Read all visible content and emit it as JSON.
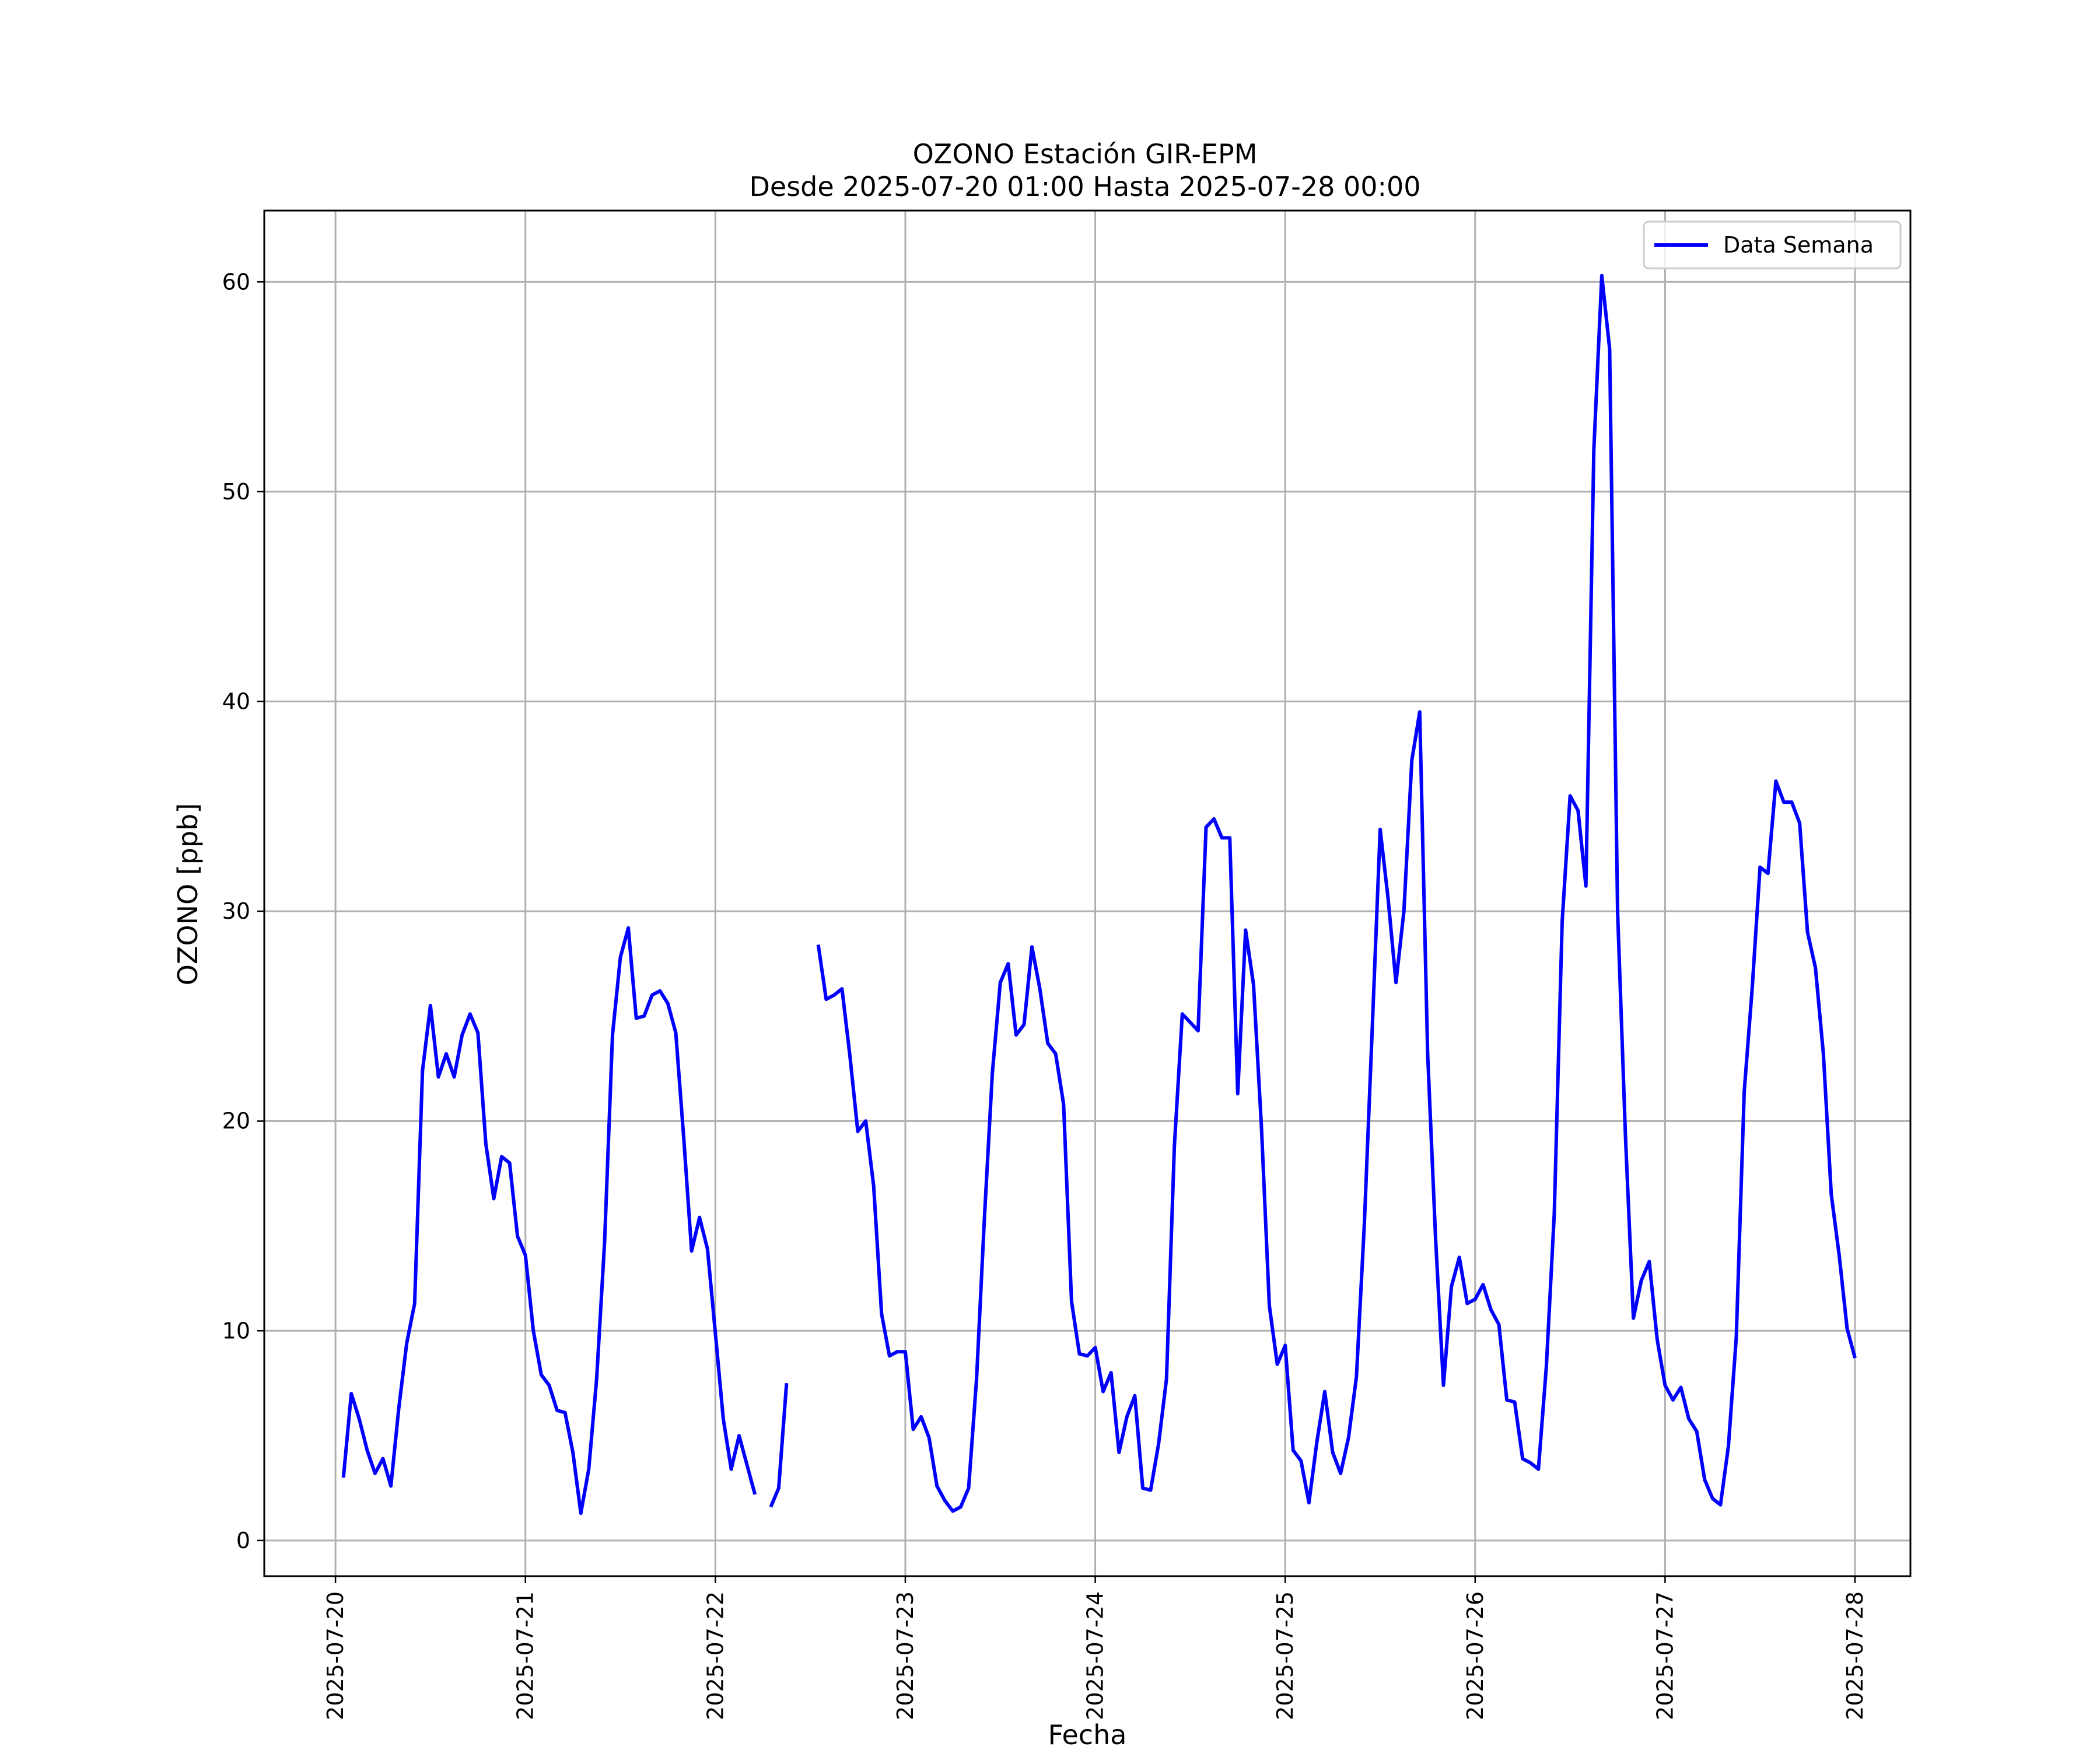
{
  "chart_data": {
    "type": "line",
    "title": "OZONO Estación GIR-EPM",
    "subtitle": "Desde 2025-07-20 01:00 Hasta 2025-07-28 00:00",
    "xlabel": "Fecha",
    "ylabel": "OZONO [ppb]",
    "xlim": [
      "2025-07-19 15:00",
      "2025-07-28 07:00"
    ],
    "ylim": [
      -1.7,
      63.4
    ],
    "x_ticks": [
      "2025-07-20",
      "2025-07-21",
      "2025-07-22",
      "2025-07-23",
      "2025-07-24",
      "2025-07-25",
      "2025-07-26",
      "2025-07-27",
      "2025-07-28"
    ],
    "y_ticks": [
      0,
      10,
      20,
      30,
      40,
      50,
      60
    ],
    "grid": true,
    "legend_position": "top-right",
    "colors": {
      "series": "#0000ff",
      "grid": "#b0b0b0",
      "axes": "#000000"
    },
    "series": [
      {
        "name": "Data Semana",
        "points": [
          [
            "2025-07-20 01:00",
            3.0
          ],
          [
            "2025-07-20 02:00",
            7.0
          ],
          [
            "2025-07-20 03:00",
            5.8
          ],
          [
            "2025-07-20 04:00",
            4.3
          ],
          [
            "2025-07-20 05:00",
            3.2
          ],
          [
            "2025-07-20 06:00",
            3.9
          ],
          [
            "2025-07-20 07:00",
            2.6
          ],
          [
            "2025-07-20 08:00",
            6.3
          ],
          [
            "2025-07-20 09:00",
            9.4
          ],
          [
            "2025-07-20 10:00",
            11.3
          ],
          [
            "2025-07-20 11:00",
            22.4
          ],
          [
            "2025-07-20 12:00",
            25.5
          ],
          [
            "2025-07-20 13:00",
            22.1
          ],
          [
            "2025-07-20 14:00",
            23.2
          ],
          [
            "2025-07-20 15:00",
            22.1
          ],
          [
            "2025-07-20 16:00",
            24.1
          ],
          [
            "2025-07-20 17:00",
            25.1
          ],
          [
            "2025-07-20 18:00",
            24.2
          ],
          [
            "2025-07-20 19:00",
            18.9
          ],
          [
            "2025-07-20 20:00",
            16.3
          ],
          [
            "2025-07-20 21:00",
            18.3
          ],
          [
            "2025-07-20 22:00",
            18.0
          ],
          [
            "2025-07-20 23:00",
            14.5
          ],
          [
            "2025-07-21 00:00",
            13.6
          ],
          [
            "2025-07-21 01:00",
            10.0
          ],
          [
            "2025-07-21 02:00",
            7.9
          ],
          [
            "2025-07-21 03:00",
            7.4
          ],
          [
            "2025-07-21 04:00",
            6.2
          ],
          [
            "2025-07-21 05:00",
            6.1
          ],
          [
            "2025-07-21 06:00",
            4.2
          ],
          [
            "2025-07-21 07:00",
            1.3
          ],
          [
            "2025-07-21 08:00",
            3.4
          ],
          [
            "2025-07-21 09:00",
            7.7
          ],
          [
            "2025-07-21 10:00",
            14.2
          ],
          [
            "2025-07-21 11:00",
            24.1
          ],
          [
            "2025-07-21 12:00",
            27.8
          ],
          [
            "2025-07-21 13:00",
            29.2
          ],
          [
            "2025-07-21 14:00",
            24.9
          ],
          [
            "2025-07-21 15:00",
            25.0
          ],
          [
            "2025-07-21 16:00",
            26.0
          ],
          [
            "2025-07-21 17:00",
            26.2
          ],
          [
            "2025-07-21 18:00",
            25.6
          ],
          [
            "2025-07-21 19:00",
            24.2
          ],
          [
            "2025-07-21 20:00",
            19.2
          ],
          [
            "2025-07-21 21:00",
            13.8
          ],
          [
            "2025-07-21 22:00",
            15.4
          ],
          [
            "2025-07-21 23:00",
            13.9
          ],
          [
            "2025-07-22 00:00",
            9.9
          ],
          [
            "2025-07-22 01:00",
            5.8
          ],
          [
            "2025-07-22 02:00",
            3.4
          ],
          [
            "2025-07-22 03:00",
            5.0
          ],
          [
            "2025-07-22 04:00",
            3.6
          ],
          [
            "2025-07-22 05:00",
            2.2
          ],
          [
            "2025-07-22 06:00",
            null
          ],
          [
            "2025-07-22 07:00",
            1.6
          ],
          [
            "2025-07-22 08:00",
            2.5
          ],
          [
            "2025-07-22 09:00",
            7.5
          ],
          [
            "2025-07-22 10:00",
            null
          ],
          [
            "2025-07-22 11:00",
            null
          ],
          [
            "2025-07-22 12:00",
            null
          ],
          [
            "2025-07-22 13:00",
            28.4
          ],
          [
            "2025-07-22 14:00",
            25.8
          ],
          [
            "2025-07-22 15:00",
            26.0
          ],
          [
            "2025-07-22 16:00",
            26.3
          ],
          [
            "2025-07-22 17:00",
            23.1
          ],
          [
            "2025-07-22 18:00",
            19.5
          ],
          [
            "2025-07-22 19:00",
            20.0
          ],
          [
            "2025-07-22 20:00",
            16.9
          ],
          [
            "2025-07-22 21:00",
            10.8
          ],
          [
            "2025-07-22 22:00",
            8.8
          ],
          [
            "2025-07-22 23:00",
            9.0
          ],
          [
            "2025-07-23 00:00",
            9.0
          ],
          [
            "2025-07-23 01:00",
            5.3
          ],
          [
            "2025-07-23 02:00",
            5.9
          ],
          [
            "2025-07-23 03:00",
            4.9
          ],
          [
            "2025-07-23 04:00",
            2.6
          ],
          [
            "2025-07-23 05:00",
            1.9
          ],
          [
            "2025-07-23 06:00",
            1.4
          ],
          [
            "2025-07-23 07:00",
            1.6
          ],
          [
            "2025-07-23 08:00",
            2.5
          ],
          [
            "2025-07-23 09:00",
            7.7
          ],
          [
            "2025-07-23 10:00",
            15.4
          ],
          [
            "2025-07-23 11:00",
            22.3
          ],
          [
            "2025-07-23 12:00",
            26.6
          ],
          [
            "2025-07-23 13:00",
            27.5
          ],
          [
            "2025-07-23 14:00",
            24.1
          ],
          [
            "2025-07-23 15:00",
            24.6
          ],
          [
            "2025-07-23 16:00",
            28.3
          ],
          [
            "2025-07-23 17:00",
            26.3
          ],
          [
            "2025-07-23 18:00",
            23.7
          ],
          [
            "2025-07-23 19:00",
            23.2
          ],
          [
            "2025-07-23 20:00",
            20.8
          ],
          [
            "2025-07-23 21:00",
            11.4
          ],
          [
            "2025-07-23 22:00",
            8.9
          ],
          [
            "2025-07-23 23:00",
            8.8
          ],
          [
            "2025-07-24 00:00",
            9.2
          ],
          [
            "2025-07-24 01:00",
            7.1
          ],
          [
            "2025-07-24 02:00",
            8.0
          ],
          [
            "2025-07-24 03:00",
            4.2
          ],
          [
            "2025-07-24 04:00",
            5.9
          ],
          [
            "2025-07-24 05:00",
            6.9
          ],
          [
            "2025-07-24 06:00",
            2.5
          ],
          [
            "2025-07-24 07:00",
            2.4
          ],
          [
            "2025-07-24 08:00",
            4.6
          ],
          [
            "2025-07-24 09:00",
            7.7
          ],
          [
            "2025-07-24 10:00",
            18.8
          ],
          [
            "2025-07-24 11:00",
            25.1
          ],
          [
            "2025-07-24 12:00",
            24.7
          ],
          [
            "2025-07-24 13:00",
            24.3
          ],
          [
            "2025-07-24 14:00",
            34.0
          ],
          [
            "2025-07-24 15:00",
            34.4
          ],
          [
            "2025-07-24 16:00",
            33.5
          ],
          [
            "2025-07-24 17:00",
            33.5
          ],
          [
            "2025-07-24 18:00",
            21.3
          ],
          [
            "2025-07-24 19:00",
            29.1
          ],
          [
            "2025-07-24 20:00",
            26.5
          ],
          [
            "2025-07-24 21:00",
            19.7
          ],
          [
            "2025-07-24 22:00",
            11.2
          ],
          [
            "2025-07-24 23:00",
            8.4
          ],
          [
            "2025-07-25 00:00",
            9.3
          ],
          [
            "2025-07-25 01:00",
            4.3
          ],
          [
            "2025-07-25 02:00",
            3.8
          ],
          [
            "2025-07-25 03:00",
            1.8
          ],
          [
            "2025-07-25 04:00",
            4.7
          ],
          [
            "2025-07-25 05:00",
            7.1
          ],
          [
            "2025-07-25 06:00",
            4.2
          ],
          [
            "2025-07-25 07:00",
            3.2
          ],
          [
            "2025-07-25 08:00",
            4.9
          ],
          [
            "2025-07-25 09:00",
            7.8
          ],
          [
            "2025-07-25 10:00",
            15.1
          ],
          [
            "2025-07-25 11:00",
            24.4
          ],
          [
            "2025-07-25 12:00",
            33.9
          ],
          [
            "2025-07-25 13:00",
            30.6
          ],
          [
            "2025-07-25 14:00",
            26.6
          ],
          [
            "2025-07-25 15:00",
            30.0
          ],
          [
            "2025-07-25 16:00",
            37.2
          ],
          [
            "2025-07-25 17:00",
            39.5
          ],
          [
            "2025-07-25 18:00",
            23.2
          ],
          [
            "2025-07-25 19:00",
            14.4
          ],
          [
            "2025-07-25 20:00",
            7.4
          ],
          [
            "2025-07-25 21:00",
            12.1
          ],
          [
            "2025-07-25 22:00",
            13.5
          ],
          [
            "2025-07-25 23:00",
            11.3
          ],
          [
            "2025-07-26 00:00",
            11.5
          ],
          [
            "2025-07-26 01:00",
            12.2
          ],
          [
            "2025-07-26 02:00",
            11.0
          ],
          [
            "2025-07-26 03:00",
            10.3
          ],
          [
            "2025-07-26 04:00",
            6.7
          ],
          [
            "2025-07-26 05:00",
            6.6
          ],
          [
            "2025-07-26 06:00",
            3.9
          ],
          [
            "2025-07-26 07:00",
            3.7
          ],
          [
            "2025-07-26 08:00",
            3.4
          ],
          [
            "2025-07-26 09:00",
            8.3
          ],
          [
            "2025-07-26 10:00",
            15.6
          ],
          [
            "2025-07-26 11:00",
            29.5
          ],
          [
            "2025-07-26 12:00",
            35.5
          ],
          [
            "2025-07-26 13:00",
            34.8
          ],
          [
            "2025-07-26 14:00",
            31.2
          ],
          [
            "2025-07-26 15:00",
            52.0
          ],
          [
            "2025-07-26 16:00",
            60.3
          ],
          [
            "2025-07-26 17:00",
            56.8
          ],
          [
            "2025-07-26 18:00",
            30.0
          ],
          [
            "2025-07-26 19:00",
            19.2
          ],
          [
            "2025-07-26 20:00",
            10.6
          ],
          [
            "2025-07-26 21:00",
            12.4
          ],
          [
            "2025-07-26 22:00",
            13.3
          ],
          [
            "2025-07-26 23:00",
            9.6
          ],
          [
            "2025-07-27 00:00",
            7.4
          ],
          [
            "2025-07-27 01:00",
            6.7
          ],
          [
            "2025-07-27 02:00",
            7.3
          ],
          [
            "2025-07-27 03:00",
            5.8
          ],
          [
            "2025-07-27 04:00",
            5.2
          ],
          [
            "2025-07-27 05:00",
            2.9
          ],
          [
            "2025-07-27 06:00",
            2.0
          ],
          [
            "2025-07-27 07:00",
            1.7
          ],
          [
            "2025-07-27 08:00",
            4.5
          ],
          [
            "2025-07-27 09:00",
            9.7
          ],
          [
            "2025-07-27 10:00",
            21.4
          ],
          [
            "2025-07-27 11:00",
            26.3
          ],
          [
            "2025-07-27 12:00",
            32.1
          ],
          [
            "2025-07-27 13:00",
            31.8
          ],
          [
            "2025-07-27 14:00",
            36.2
          ],
          [
            "2025-07-27 15:00",
            35.2
          ],
          [
            "2025-07-27 16:00",
            35.2
          ],
          [
            "2025-07-27 17:00",
            34.2
          ],
          [
            "2025-07-27 18:00",
            29.0
          ],
          [
            "2025-07-27 19:00",
            27.3
          ],
          [
            "2025-07-27 20:00",
            23.2
          ],
          [
            "2025-07-27 21:00",
            16.5
          ],
          [
            "2025-07-27 22:00",
            13.6
          ],
          [
            "2025-07-27 23:00",
            10.1
          ],
          [
            "2025-07-28 00:00",
            8.7
          ]
        ]
      }
    ]
  }
}
